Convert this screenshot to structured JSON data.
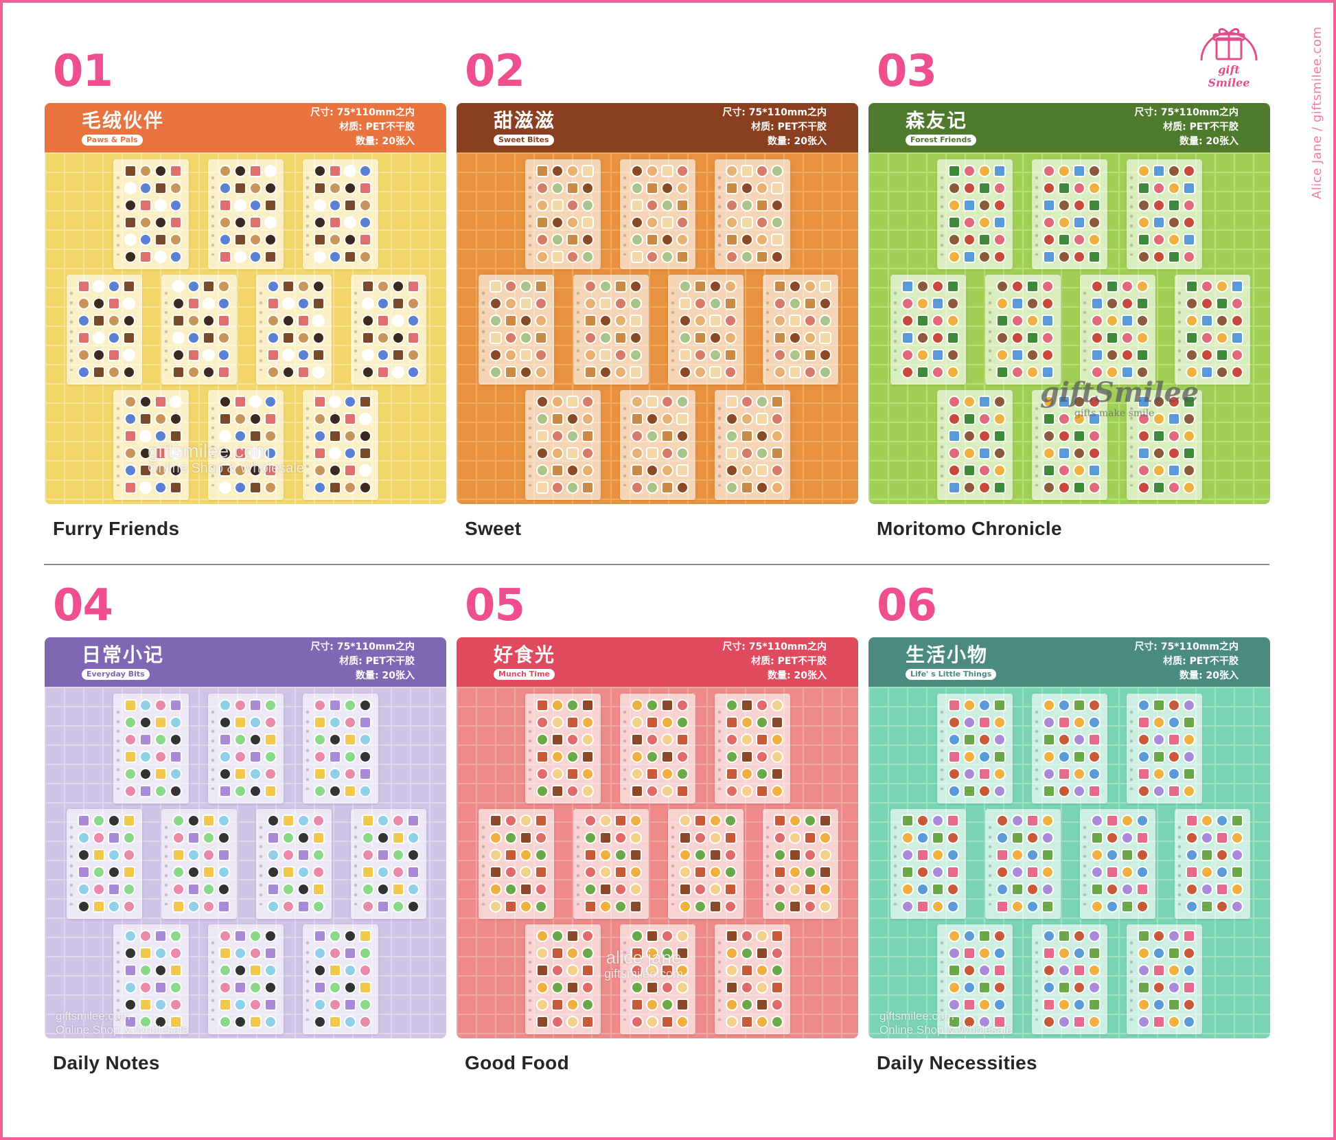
{
  "brand": {
    "logo_text": "gift Smilee",
    "side_text": "Alice Jane / giftsmilee.com"
  },
  "specs": {
    "size": "尺寸: 75*110mm之内",
    "material": "材质: PET不干胶",
    "count": "数量: 20张入"
  },
  "colors": {
    "accent_pink": "#ef4f8e"
  },
  "items": [
    {
      "num": "01",
      "title_cn": "毛绒伙伴",
      "subtitle_en": "Paws & Pals",
      "caption": "Furry Friends",
      "header_color": "#e8733f",
      "body_color": "#f3d66a",
      "grid_color": "#f7e49a",
      "sticker_colors": [
        "#7a4a2a",
        "#c8955a",
        "#3a2a20",
        "#e07070",
        "#ffffff",
        "#5b7fd1"
      ],
      "watermark_1": "giftsmilee.com",
      "watermark_2": "Online Shop & Wholesale"
    },
    {
      "num": "02",
      "title_cn": "甜滋滋",
      "subtitle_en": "Sweet Bites",
      "caption": "Sweet",
      "header_color": "#8a3f20",
      "body_color": "#e8923f",
      "grid_color": "#f0aa62",
      "sticker_colors": [
        "#c98a45",
        "#8a4a25",
        "#e8b070",
        "#f3d8a8",
        "#d67a6a",
        "#a8c48a"
      ]
    },
    {
      "num": "03",
      "title_cn": "森友记",
      "subtitle_en": "Forest Friends",
      "caption": "Moritomo Chronicle",
      "header_color": "#4f7a2e",
      "body_color": "#9fcf55",
      "grid_color": "#b8e07a",
      "sticker_colors": [
        "#3f8a3a",
        "#e06a7a",
        "#f0b040",
        "#5a9ad8",
        "#8a5a3a",
        "#c84a3a"
      ],
      "wm_logo": "giftSmilee",
      "wm_sub": "gifts make smile"
    },
    {
      "num": "04",
      "title_cn": "日常小记",
      "subtitle_en": "Everyday Bits",
      "caption": "Daily Notes",
      "header_color": "#7f67b4",
      "body_color": "#cfc3e6",
      "grid_color": "#ddd4ef",
      "sticker_colors": [
        "#f2c94c",
        "#8fd0e8",
        "#e88aa8",
        "#a98ad8",
        "#8ad88a",
        "#333333"
      ],
      "watermark_1": "giftsmilee.com",
      "watermark_2": "Online Shop & Wholesale"
    },
    {
      "num": "05",
      "title_cn": "好食光",
      "subtitle_en": "Munch Time",
      "caption": "Good Food",
      "header_color": "#e04a5e",
      "body_color": "#ee8a8a",
      "grid_color": "#f3a6a6",
      "sticker_colors": [
        "#c85a3a",
        "#f0b040",
        "#6aa84a",
        "#8a4a2a",
        "#e06a6a",
        "#f3d08a"
      ],
      "watermark_1": "alice jane",
      "watermark_2": "giftsmilee.com"
    },
    {
      "num": "06",
      "title_cn": "生活小物",
      "subtitle_en": "Life' s Little Things",
      "caption": "Daily Necessities",
      "header_color": "#4a8a80",
      "body_color": "#7ad4b4",
      "grid_color": "#9ee2c8",
      "sticker_colors": [
        "#e86a8a",
        "#f0b040",
        "#5a9ad8",
        "#6aa84a",
        "#c85a3a",
        "#a98ad8"
      ],
      "watermark_1": "giftsmilee.com",
      "watermark_2": "Online Shop & Wholesale"
    }
  ]
}
